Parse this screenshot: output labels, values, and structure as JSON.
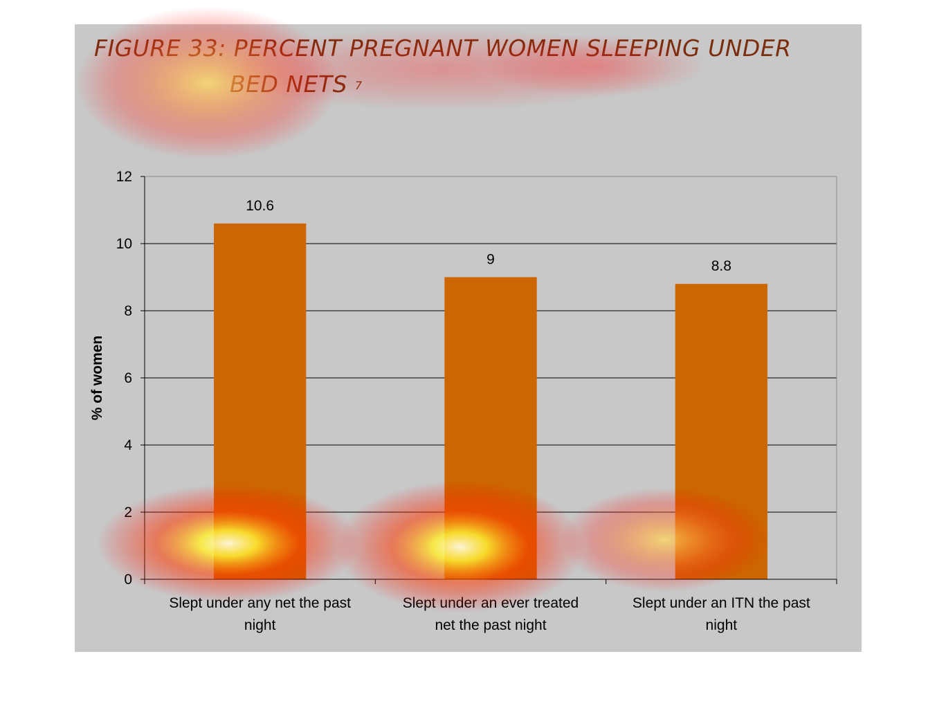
{
  "figure": {
    "title_line1": "FIGURE 33: PERCENT PREGNANT WOMEN SLEEPING UNDER",
    "title_line2": "BED NETS",
    "title_sup": "7"
  },
  "colors": {
    "bar": "#cc6600",
    "panel": "#c8c8c8",
    "title": "#7a2e0e",
    "grid": "#000000"
  },
  "chart_data": {
    "type": "bar",
    "categories": [
      [
        "Slept under any net the past",
        "night"
      ],
      [
        "Slept under an ever treated",
        "net the past night"
      ],
      [
        "Slept under an ITN the past",
        "night"
      ]
    ],
    "values": [
      10.6,
      9,
      8.8
    ],
    "data_labels": [
      "10.6",
      "9",
      "8.8"
    ],
    "ylabel": "% of women",
    "ylim": [
      0,
      12
    ],
    "yticks": [
      "0",
      "2",
      "4",
      "6",
      "8",
      "10",
      "12"
    ],
    "grid": true,
    "legend": "none"
  }
}
